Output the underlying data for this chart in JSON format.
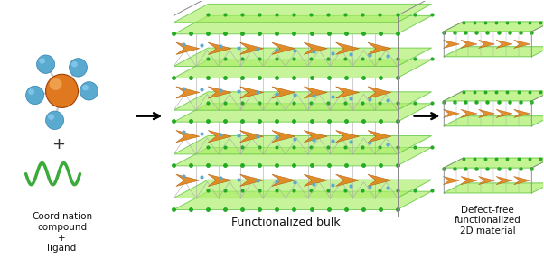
{
  "bg_color": "#ffffff",
  "fig_width": 6.02,
  "fig_height": 2.86,
  "center_sphere_color": "#e07820",
  "ligand_color": "#3aaa3a",
  "arm_sphere_color": "#5aaad0",
  "text_left": "Coordination\ncompound\n+\nligand",
  "text_center": "Functionalized bulk",
  "text_right": "Defect-free\nfunctionalized\n2D material",
  "green_plane_color": "#aaee66",
  "green_plane_edge": "#44bb22",
  "orange_color": "#e08820",
  "orange_edge": "#b05000",
  "bond_color": "#aaaaaa",
  "node_color": "#5aaad0",
  "node_color_green": "#22aa22"
}
